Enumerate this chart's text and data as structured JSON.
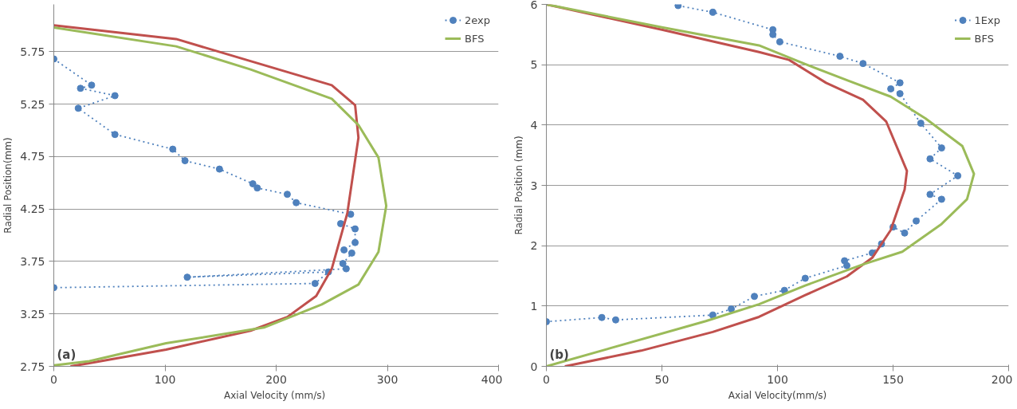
{
  "chart_data": [
    {
      "type": "line",
      "xlabel": "Axial Velocity  (mm/s)",
      "ylabel": "Radial Position(mm)",
      "annotations": [
        "(a)"
      ],
      "xlim": [
        0,
        400
      ],
      "xticks": [
        0,
        100,
        200,
        300,
        400
      ],
      "ylim": [
        2.75,
        6.2
      ],
      "yticks": [
        2.75,
        3.25,
        3.75,
        4.25,
        4.75,
        5.25,
        5.75
      ],
      "grid": "y",
      "legend": "top right",
      "series": [
        {
          "name": "2exp",
          "color": "#4f81bd",
          "marker": "circle",
          "line_style": "dotted",
          "x": [
            0,
            34,
            24,
            55,
            22,
            55,
            107,
            118,
            149,
            179,
            183,
            210,
            218,
            267,
            258,
            271,
            271,
            261,
            268,
            260,
            263,
            120,
            247,
            235,
            0
          ],
          "values": [
            5.68,
            5.43,
            5.4,
            5.33,
            5.21,
            4.96,
            4.82,
            4.71,
            4.63,
            4.49,
            4.45,
            4.39,
            4.31,
            4.2,
            4.11,
            4.06,
            3.93,
            3.86,
            3.83,
            3.73,
            3.68,
            3.6,
            3.65,
            3.54,
            3.5
          ]
        },
        {
          "color": "#c0504d",
          "marker": "none",
          "line_style": "solid",
          "x": [
            0,
            110,
            250,
            271,
            274,
            264,
            250,
            236,
            210,
            177,
            101,
            32,
            15
          ],
          "values": [
            6.0,
            5.87,
            5.43,
            5.24,
            4.93,
            4.21,
            3.68,
            3.42,
            3.22,
            3.09,
            2.91,
            2.78,
            2.75
          ]
        },
        {
          "name": "BFS",
          "color": "#9bbb59",
          "marker": "none",
          "line_style": "solid",
          "x": [
            0,
            110,
            177,
            250,
            274,
            292,
            299,
            292,
            274,
            241,
            189,
            101,
            32,
            0
          ],
          "values": [
            5.98,
            5.8,
            5.58,
            5.3,
            5.05,
            4.74,
            4.28,
            3.84,
            3.53,
            3.34,
            3.12,
            2.97,
            2.8,
            2.76
          ]
        }
      ]
    },
    {
      "type": "line",
      "xlabel": "Axial Velocity(mm/s)",
      "ylabel": "Radial Position (mm)",
      "annotations": [
        "(b)"
      ],
      "xlim": [
        0,
        200
      ],
      "xticks": [
        0,
        50,
        100,
        150,
        200
      ],
      "ylim": [
        0,
        6
      ],
      "yticks": [
        0,
        1,
        2,
        3,
        4,
        5,
        6
      ],
      "grid": "y",
      "legend": "top right",
      "series": [
        {
          "name": "1Exp",
          "color": "#4f81bd",
          "marker": "circle",
          "line_style": "dotted",
          "x": [
            57,
            72,
            98,
            98,
            101,
            127,
            137,
            153,
            149,
            153,
            162,
            171,
            166,
            178,
            166,
            171,
            160,
            155,
            150,
            145,
            141,
            129,
            130,
            112,
            103,
            90,
            80,
            72,
            30,
            24,
            0
          ],
          "values": [
            5.98,
            5.87,
            5.58,
            5.5,
            5.38,
            5.14,
            5.02,
            4.7,
            4.6,
            4.52,
            4.03,
            3.62,
            3.44,
            3.16,
            2.85,
            2.77,
            2.41,
            2.21,
            2.31,
            2.03,
            1.88,
            1.75,
            1.67,
            1.46,
            1.26,
            1.16,
            0.95,
            0.85,
            0.77,
            0.81,
            0.74
          ]
        },
        {
          "color": "#c0504d",
          "marker": "none",
          "line_style": "solid",
          "x": [
            0,
            50,
            92,
            105,
            121,
            137,
            147,
            156,
            155,
            149,
            141,
            130,
            112,
            92,
            72,
            41,
            8
          ],
          "values": [
            6.0,
            5.58,
            5.21,
            5.08,
            4.7,
            4.42,
            4.06,
            3.24,
            2.93,
            2.26,
            1.8,
            1.49,
            1.18,
            0.82,
            0.57,
            0.26,
            0
          ]
        },
        {
          "name": "BFS",
          "color": "#9bbb59",
          "marker": "none",
          "line_style": "solid",
          "x": [
            0,
            50,
            92,
            112,
            131,
            149,
            164,
            180,
            185,
            182,
            171,
            154,
            137,
            112,
            92,
            69,
            0
          ],
          "values": [
            6.0,
            5.62,
            5.32,
            5.01,
            4.73,
            4.47,
            4.11,
            3.65,
            3.19,
            2.77,
            2.36,
            1.9,
            1.69,
            1.34,
            1.03,
            0.75,
            0
          ]
        }
      ]
    }
  ]
}
